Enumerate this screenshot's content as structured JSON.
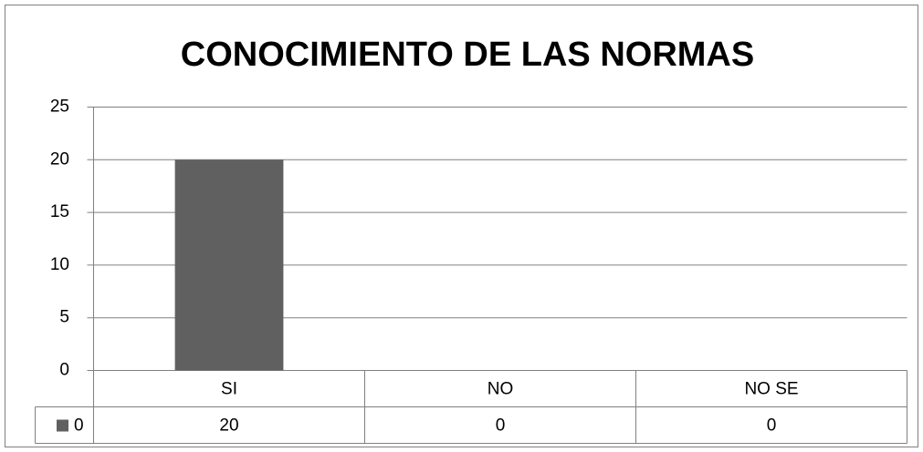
{
  "chart_data": {
    "type": "bar",
    "title": "CONOCIMIENTO DE LAS NORMAS",
    "categories": [
      "SI",
      "NO",
      "NO SE"
    ],
    "series": [
      {
        "name": "0",
        "color": "#606060",
        "values": [
          20,
          0,
          0
        ]
      }
    ],
    "ylim": [
      0,
      25
    ],
    "yticks": [
      0,
      5,
      10,
      15,
      20,
      25
    ],
    "grid": true,
    "data_table": true
  }
}
